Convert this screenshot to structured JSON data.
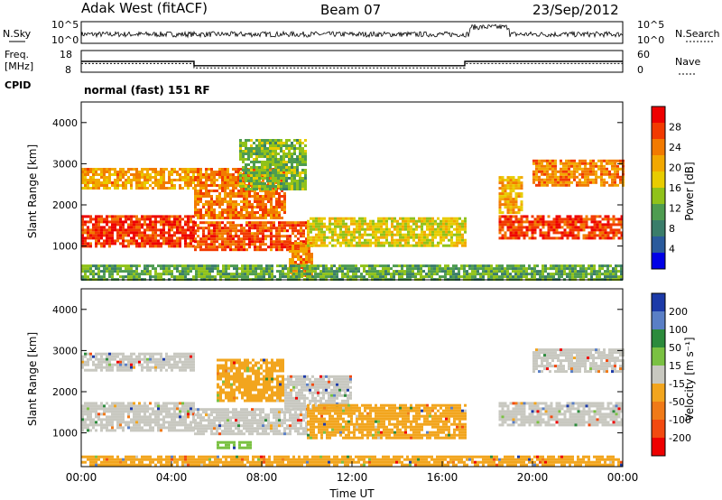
{
  "header": {
    "station": "Adak West (fitACF)",
    "beam": "Beam 07",
    "date": "23/Sep/2012",
    "mode": "normal (fast) 151 RF"
  },
  "labels": {
    "nsky": "N.Sky",
    "nsearch": "N.Search",
    "freq": "Freq.",
    "freq_unit": "[MHz]",
    "cpid": "CPID",
    "nave": "Nave",
    "xlabel": "Time UT"
  },
  "chart_data": [
    {
      "type": "line",
      "name": "noise-strip",
      "ylabels_left": [
        "10^5",
        "10^0"
      ],
      "ylabels_right": [
        "10^5",
        "10^0"
      ]
    },
    {
      "type": "line",
      "name": "freq-strip",
      "ylabels_left": [
        "18",
        "8"
      ],
      "ylabels_right": [
        "60",
        "0"
      ],
      "xlim": [
        0,
        24
      ],
      "freq_steps": [
        [
          0,
          13
        ],
        [
          5.0,
          13
        ],
        [
          5.0,
          11
        ],
        [
          17.0,
          11
        ],
        [
          17.0,
          13
        ],
        [
          24,
          13
        ]
      ],
      "nave_steps": [
        [
          0,
          12
        ],
        [
          5.0,
          12
        ],
        [
          5.0,
          10
        ],
        [
          17.0,
          10
        ],
        [
          17.0,
          12
        ],
        [
          24,
          12
        ]
      ]
    },
    {
      "type": "heatmap",
      "name": "power",
      "xlabel": "Time UT",
      "ylabel": "Slant Range [km]",
      "xlim": [
        0,
        24
      ],
      "ylim": [
        180,
        4500
      ],
      "yticks": [
        "1000",
        "2000",
        "3000",
        "4000"
      ],
      "colorbar_label": "Power [dB]",
      "colorbar_ticks": [
        "28",
        "24",
        "20",
        "16",
        "12",
        "8",
        "4"
      ],
      "colorbar_colors": [
        "#ee0000",
        "#f23a00",
        "#f27a00",
        "#f2a800",
        "#e8cc00",
        "#90c21a",
        "#4e9c50",
        "#3a7d6a",
        "#2a5a9c",
        "#0000e6"
      ],
      "bands": [
        {
          "t0": 0.0,
          "t1": 5.0,
          "r0": 1000,
          "r1": 1750,
          "level": 0.92
        },
        {
          "t0": 0.0,
          "t1": 5.0,
          "r0": 2400,
          "r1": 2900,
          "level": 0.7
        },
        {
          "t0": 5.0,
          "t1": 10.0,
          "r0": 900,
          "r1": 1600,
          "level": 0.85
        },
        {
          "t0": 5.0,
          "t1": 9.0,
          "r0": 1700,
          "r1": 2900,
          "level": 0.78
        },
        {
          "t0": 9.2,
          "t1": 10.2,
          "r0": 300,
          "r1": 1100,
          "level": 0.75
        },
        {
          "t0": 10.0,
          "t1": 17.0,
          "r0": 1000,
          "r1": 1700,
          "level": 0.55
        },
        {
          "t0": 7.0,
          "t1": 10.0,
          "r0": 2400,
          "r1": 3600,
          "level": 0.4
        },
        {
          "t0": 18.5,
          "t1": 24.0,
          "r0": 1200,
          "r1": 1750,
          "level": 0.9
        },
        {
          "t0": 18.5,
          "t1": 19.5,
          "r0": 1800,
          "r1": 2700,
          "level": 0.65
        },
        {
          "t0": 20.0,
          "t1": 24.0,
          "r0": 2500,
          "r1": 3100,
          "level": 0.75
        },
        {
          "t0": 0.0,
          "t1": 24.0,
          "r0": 200,
          "r1": 550,
          "level": 0.35
        }
      ]
    },
    {
      "type": "heatmap",
      "name": "velocity",
      "xlabel": "Time UT",
      "ylabel": "Slant Range [km]",
      "xlim": [
        0,
        24
      ],
      "ylim": [
        180,
        4500
      ],
      "yticks": [
        "1000",
        "2000",
        "3000",
        "4000"
      ],
      "xticks": [
        "00:00",
        "04:00",
        "08:00",
        "12:00",
        "16:00",
        "20:00",
        "00:00"
      ],
      "colorbar_label": "Velocity [m s⁻¹]",
      "colorbar_ticks": [
        "200",
        "100",
        "50",
        "15",
        "-15",
        "-50",
        "-100",
        "-200"
      ],
      "colorbar_colors": [
        "#1c3aa8",
        "#5a7fc6",
        "#2c8b3c",
        "#7ac142",
        "#c8c8c0",
        "#f2a51e",
        "#f07a18",
        "#f24a10",
        "#ee0000"
      ],
      "bands": [
        {
          "t0": 0.0,
          "t1": 5.0,
          "r0": 1050,
          "r1": 1750,
          "color": "#c8c8c0"
        },
        {
          "t0": 0.0,
          "t1": 5.0,
          "r0": 2500,
          "r1": 2950,
          "color": "#c8c8c0"
        },
        {
          "t0": 5.0,
          "t1": 10.0,
          "r0": 1000,
          "r1": 1600,
          "color": "#c8c8c0"
        },
        {
          "t0": 6.0,
          "t1": 9.0,
          "r0": 1800,
          "r1": 2800,
          "color": "#f2a51e"
        },
        {
          "t0": 9.0,
          "t1": 12.0,
          "r0": 1600,
          "r1": 2400,
          "color": "#c8c8c0"
        },
        {
          "t0": 10.0,
          "t1": 17.0,
          "r0": 900,
          "r1": 1700,
          "color": "#f2a51e"
        },
        {
          "t0": 18.5,
          "t1": 24.0,
          "r0": 1200,
          "r1": 1750,
          "color": "#c8c8c0"
        },
        {
          "t0": 20.0,
          "t1": 24.0,
          "r0": 2500,
          "r1": 3050,
          "color": "#c8c8c0"
        },
        {
          "t0": 6.0,
          "t1": 7.5,
          "r0": 650,
          "r1": 800,
          "color": "#7ac142"
        },
        {
          "t0": 0.0,
          "t1": 24.0,
          "r0": 200,
          "r1": 450,
          "color": "#f2a51e"
        }
      ]
    }
  ]
}
